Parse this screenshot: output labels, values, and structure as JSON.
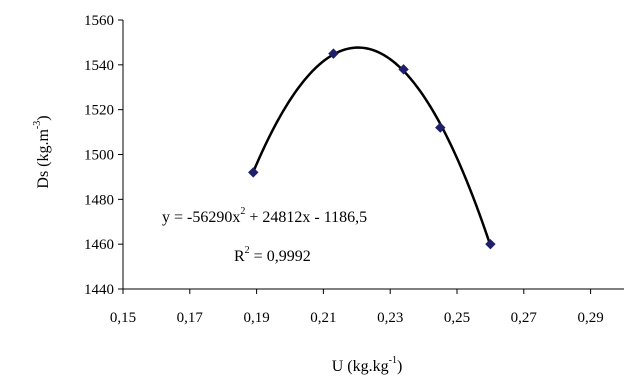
{
  "chart_data": {
    "type": "scatter",
    "title": "",
    "xlabel": {
      "base": "U (kg.kg",
      "sup": "-1",
      "close": ")"
    },
    "ylabel": {
      "base": "Ds (kg.m",
      "sup": "-3",
      "close": ")"
    },
    "xlim": [
      0.15,
      0.3
    ],
    "ylim": [
      1440,
      1560
    ],
    "x_ticks": [
      "0,15",
      "0,17",
      "0,19",
      "0,21",
      "0,23",
      "0,25",
      "0,27",
      "0,29"
    ],
    "x_tick_values": [
      0.15,
      0.17,
      0.19,
      0.21,
      0.23,
      0.25,
      0.27,
      0.29
    ],
    "y_ticks": [
      "1440",
      "1460",
      "1480",
      "1500",
      "1520",
      "1540",
      "1560"
    ],
    "y_tick_values": [
      1440,
      1460,
      1480,
      1500,
      1520,
      1540,
      1560
    ],
    "grid": false,
    "legend": "none",
    "series": [
      {
        "marker": "diamond",
        "color": "#1f1f6b",
        "x": [
          0.189,
          0.213,
          0.234,
          0.245,
          0.26
        ],
        "y": [
          1492,
          1545,
          1538,
          1512,
          1460
        ]
      }
    ],
    "trendline": {
      "type": "polynomial",
      "coefficients": [
        -56290,
        24812,
        -1186.5
      ],
      "x_range": [
        0.189,
        0.26
      ],
      "color": "#000000"
    },
    "annotations": {
      "equation": {
        "part1": "y = -56290x",
        "sup": "2",
        "part2": " + 24812x - 1186,5"
      },
      "r2": {
        "part1": "R",
        "sup": "2",
        "part2": " = 0,9992"
      }
    }
  }
}
